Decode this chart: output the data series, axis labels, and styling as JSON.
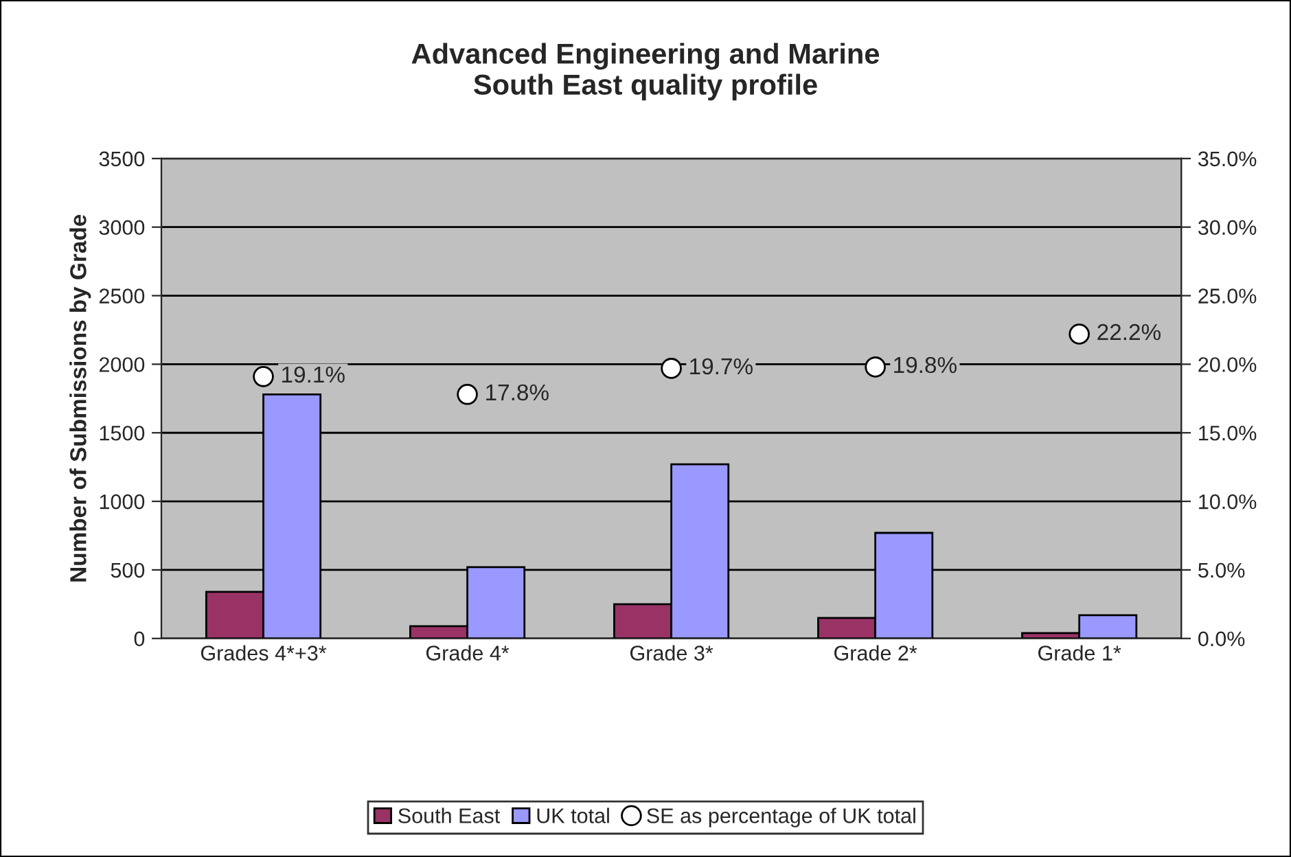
{
  "chart_data": {
    "type": "bar",
    "title": "Advanced Engineering and Marine\nSouth East quality profile",
    "ylabel": "Number of Submissions by Grade",
    "categories": [
      "Grades 4*+3*",
      "Grade 4*",
      "Grade 3*",
      "Grade 2*",
      "Grade 1*"
    ],
    "series": [
      {
        "name": "South East",
        "color": "#993366",
        "values": [
          340,
          90,
          250,
          150,
          40
        ]
      },
      {
        "name": "UK total",
        "color": "#9999ff",
        "values": [
          1780,
          520,
          1270,
          770,
          170
        ]
      },
      {
        "name": "SE as percentage of UK total",
        "type": "scatter",
        "axis": "y2",
        "color": "#ffffff",
        "values": [
          19.1,
          17.8,
          19.7,
          19.8,
          22.2
        ],
        "value_labels": [
          "19.1%",
          "17.8%",
          "19.7%",
          "19.8%",
          "22.2%"
        ]
      }
    ],
    "ylim": [
      0,
      3500
    ],
    "yticks": [
      0,
      500,
      1000,
      1500,
      2000,
      2500,
      3000,
      3500
    ],
    "y2lim": [
      0,
      35
    ],
    "y2ticks": [
      {
        "value": 0,
        "label": "0.0%"
      },
      {
        "value": 5,
        "label": "5.0%"
      },
      {
        "value": 10,
        "label": "10.0%"
      },
      {
        "value": 15,
        "label": "15.0%"
      },
      {
        "value": 20,
        "label": "20.0%"
      },
      {
        "value": 25,
        "label": "25.0%"
      },
      {
        "value": 30,
        "label": "30.0%"
      },
      {
        "value": 35,
        "label": "35.0%"
      }
    ],
    "grid": "y",
    "legend": "bottom",
    "marker": "circle"
  }
}
